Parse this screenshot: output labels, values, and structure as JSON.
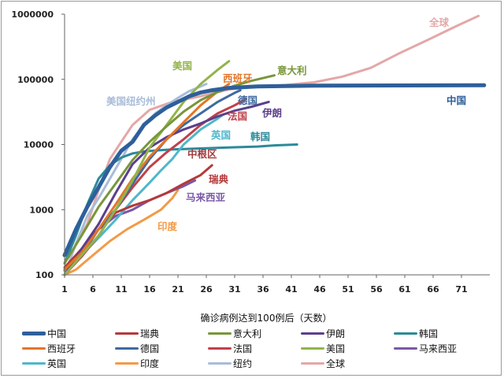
{
  "chart_data": {
    "type": "line",
    "y_scale": "log",
    "xlabel": "确诊病例达到100例后（天数）",
    "ylabel": "",
    "xlim": [
      1,
      76
    ],
    "ylim": [
      100,
      1000000
    ],
    "x_ticks": [
      "1",
      "6",
      "11",
      "16",
      "21",
      "26",
      "31",
      "36",
      "41",
      "46",
      "51",
      "56",
      "61",
      "66",
      "71"
    ],
    "y_ticks": [
      "100",
      "1000",
      "10000",
      "100000",
      "1000000"
    ],
    "series": [
      {
        "name": "中国",
        "label": "中国",
        "color": "#2e5f9a",
        "width": 5,
        "points": [
          [
            1,
            200
          ],
          [
            3,
            500
          ],
          [
            5,
            1100
          ],
          [
            7,
            2200
          ],
          [
            9,
            4500
          ],
          [
            11,
            8000
          ],
          [
            13,
            11000
          ],
          [
            15,
            20000
          ],
          [
            17,
            28000
          ],
          [
            19,
            37000
          ],
          [
            21,
            45000
          ],
          [
            23,
            55000
          ],
          [
            25,
            63000
          ],
          [
            27,
            68000
          ],
          [
            30,
            74000
          ],
          [
            35,
            78000
          ],
          [
            45,
            80000
          ],
          [
            60,
            80500
          ],
          [
            75,
            81000
          ]
        ]
      },
      {
        "name": "瑞典",
        "label": "瑞典",
        "color": "#b33a3a",
        "width": 3,
        "points": [
          [
            1,
            130
          ],
          [
            4,
            250
          ],
          [
            7,
            500
          ],
          [
            10,
            900
          ],
          [
            13,
            1150
          ],
          [
            16,
            1400
          ],
          [
            19,
            1800
          ],
          [
            22,
            2500
          ],
          [
            25,
            3400
          ],
          [
            27,
            4800
          ]
        ]
      },
      {
        "name": "意大利",
        "label": "意大利",
        "color": "#78963a",
        "width": 3,
        "points": [
          [
            1,
            150
          ],
          [
            4,
            400
          ],
          [
            7,
            1100
          ],
          [
            10,
            2500
          ],
          [
            13,
            5800
          ],
          [
            16,
            11000
          ],
          [
            19,
            19000
          ],
          [
            22,
            32000
          ],
          [
            25,
            48000
          ],
          [
            28,
            64000
          ],
          [
            31,
            80000
          ],
          [
            34,
            95000
          ],
          [
            38,
            115000
          ]
        ]
      },
      {
        "name": "伊朗",
        "label": "伊朗",
        "color": "#5b3f8c",
        "width": 3,
        "points": [
          [
            1,
            100
          ],
          [
            4,
            250
          ],
          [
            7,
            600
          ],
          [
            10,
            1800
          ],
          [
            13,
            5000
          ],
          [
            16,
            9000
          ],
          [
            19,
            13000
          ],
          [
            22,
            17000
          ],
          [
            25,
            21000
          ],
          [
            28,
            27000
          ],
          [
            31,
            33000
          ],
          [
            34,
            38000
          ],
          [
            37,
            45000
          ]
        ]
      },
      {
        "name": "韩国",
        "label": "韩国",
        "color": "#2c8a9a",
        "width": 3,
        "points": [
          [
            1,
            150
          ],
          [
            3,
            400
          ],
          [
            5,
            1200
          ],
          [
            7,
            3000
          ],
          [
            9,
            4800
          ],
          [
            11,
            6300
          ],
          [
            13,
            7300
          ],
          [
            15,
            7800
          ],
          [
            17,
            8100
          ],
          [
            20,
            8400
          ],
          [
            25,
            8700
          ],
          [
            30,
            9000
          ],
          [
            35,
            9300
          ],
          [
            38,
            9700
          ],
          [
            42,
            10000
          ]
        ]
      },
      {
        "name": "西班牙",
        "label": "西班牙",
        "color": "#e2762a",
        "width": 3,
        "points": [
          [
            1,
            120
          ],
          [
            4,
            220
          ],
          [
            7,
            500
          ],
          [
            10,
            1200
          ],
          [
            13,
            3000
          ],
          [
            16,
            6500
          ],
          [
            19,
            12000
          ],
          [
            22,
            22000
          ],
          [
            25,
            40000
          ],
          [
            28,
            65000
          ],
          [
            30,
            85000
          ]
        ]
      },
      {
        "name": "德国",
        "label": "德国",
        "color": "#3e6aa0",
        "width": 3,
        "points": [
          [
            1,
            120
          ],
          [
            4,
            200
          ],
          [
            7,
            500
          ],
          [
            10,
            1000
          ],
          [
            13,
            2500
          ],
          [
            16,
            6000
          ],
          [
            19,
            12000
          ],
          [
            22,
            20000
          ],
          [
            25,
            30000
          ],
          [
            28,
            45000
          ],
          [
            31,
            62000
          ],
          [
            32,
            68000
          ]
        ]
      },
      {
        "name": "法国",
        "label": "法国",
        "color": "#c0404a",
        "width": 3,
        "points": [
          [
            1,
            100
          ],
          [
            4,
            190
          ],
          [
            7,
            400
          ],
          [
            10,
            1000
          ],
          [
            13,
            2200
          ],
          [
            16,
            4500
          ],
          [
            19,
            7600
          ],
          [
            22,
            12000
          ],
          [
            25,
            20000
          ],
          [
            28,
            30000
          ],
          [
            31,
            40000
          ],
          [
            33,
            50000
          ]
        ]
      },
      {
        "name": "美国",
        "label": "美国",
        "color": "#92b44a",
        "width": 3,
        "points": [
          [
            1,
            100
          ],
          [
            4,
            200
          ],
          [
            7,
            400
          ],
          [
            10,
            1000
          ],
          [
            13,
            2800
          ],
          [
            16,
            9000
          ],
          [
            19,
            20000
          ],
          [
            22,
            45000
          ],
          [
            25,
            85000
          ],
          [
            28,
            140000
          ],
          [
            30,
            190000
          ]
        ]
      },
      {
        "name": "马来西亚",
        "label": "马来西亚",
        "color": "#7a58a8",
        "width": 3,
        "points": [
          [
            1,
            120
          ],
          [
            4,
            250
          ],
          [
            7,
            500
          ],
          [
            10,
            800
          ],
          [
            13,
            1000
          ],
          [
            16,
            1400
          ],
          [
            19,
            1800
          ],
          [
            22,
            2300
          ],
          [
            24,
            2800
          ]
        ]
      },
      {
        "name": "英国",
        "label": "英国",
        "color": "#4fb7cc",
        "width": 3,
        "points": [
          [
            1,
            115
          ],
          [
            4,
            200
          ],
          [
            7,
            370
          ],
          [
            10,
            700
          ],
          [
            13,
            1400
          ],
          [
            16,
            2600
          ],
          [
            18,
            4000
          ],
          [
            20,
            6000
          ],
          [
            22,
            10000
          ],
          [
            25,
            17000
          ],
          [
            28,
            25000
          ],
          [
            29,
            29000
          ]
        ]
      },
      {
        "name": "印度",
        "label": "印度",
        "color": "#f39a48",
        "width": 3,
        "points": [
          [
            1,
            100
          ],
          [
            3,
            120
          ],
          [
            6,
            200
          ],
          [
            9,
            330
          ],
          [
            12,
            500
          ],
          [
            15,
            700
          ],
          [
            18,
            1000
          ],
          [
            20,
            1500
          ],
          [
            21,
            2000
          ]
        ]
      },
      {
        "name": "纽约",
        "label": "美国纽约州",
        "color": "#a9bcd8",
        "width": 3,
        "points": [
          [
            1,
            100
          ],
          [
            3,
            300
          ],
          [
            5,
            800
          ],
          [
            7,
            1500
          ],
          [
            9,
            3000
          ],
          [
            11,
            6000
          ],
          [
            13,
            12000
          ],
          [
            15,
            20000
          ],
          [
            17,
            30000
          ],
          [
            19,
            40000
          ],
          [
            21,
            52000
          ],
          [
            23,
            66000
          ],
          [
            25,
            78000
          ],
          [
            26,
            85000
          ]
        ]
      },
      {
        "name": "全球",
        "label": "全球",
        "color": "#e4a7a7",
        "width": 3,
        "points": [
          [
            1,
            100
          ],
          [
            3,
            300
          ],
          [
            5,
            600
          ],
          [
            7,
            2000
          ],
          [
            9,
            6000
          ],
          [
            11,
            11000
          ],
          [
            13,
            20000
          ],
          [
            16,
            34000
          ],
          [
            20,
            45000
          ],
          [
            25,
            55000
          ],
          [
            30,
            70000
          ],
          [
            35,
            78000
          ],
          [
            40,
            82000
          ],
          [
            45,
            90000
          ],
          [
            50,
            110000
          ],
          [
            55,
            150000
          ],
          [
            60,
            250000
          ],
          [
            65,
            400000
          ],
          [
            70,
            650000
          ],
          [
            74,
            940000
          ]
        ]
      }
    ]
  },
  "legend": [
    {
      "name": "中国",
      "color": "#2e5f9a",
      "width": 5
    },
    {
      "name": "瑞典",
      "color": "#b33a3a",
      "width": 3
    },
    {
      "name": "意大利",
      "color": "#78963a",
      "width": 3
    },
    {
      "name": "伊朗",
      "color": "#5b3f8c",
      "width": 3
    },
    {
      "name": "韩国",
      "color": "#2c8a9a",
      "width": 3
    },
    {
      "name": "西班牙",
      "color": "#e2762a",
      "width": 3
    },
    {
      "name": "德国",
      "color": "#3e6aa0",
      "width": 3
    },
    {
      "name": "法国",
      "color": "#c0404a",
      "width": 3
    },
    {
      "name": "美国",
      "color": "#92b44a",
      "width": 3
    },
    {
      "name": "马来西亚",
      "color": "#7a58a8",
      "width": 3
    },
    {
      "name": "英国",
      "color": "#4fb7cc",
      "width": 3
    },
    {
      "name": "印度",
      "color": "#f39a48",
      "width": 3
    },
    {
      "name": "纽约",
      "color": "#a9bcd8",
      "width": 3
    },
    {
      "name": "全球",
      "color": "#e4a7a7",
      "width": 3
    }
  ],
  "annotations": [
    {
      "text": "全球",
      "color": "#e4a7a7"
    },
    {
      "text": "美国",
      "color": "#92b44a"
    },
    {
      "text": "意大利",
      "color": "#78963a"
    },
    {
      "text": "西班牙",
      "color": "#e2762a"
    },
    {
      "text": "美国纽约州",
      "color": "#a9bcd8"
    },
    {
      "text": "德国",
      "color": "#3e6aa0"
    },
    {
      "text": "伊朗",
      "color": "#5b3f8c"
    },
    {
      "text": "法国",
      "color": "#c0404a"
    },
    {
      "text": "中国",
      "color": "#2e5f9a"
    },
    {
      "text": "英国",
      "color": "#4fb7cc"
    },
    {
      "text": "韩国",
      "color": "#2c8a9a"
    },
    {
      "text": "中根区",
      "color": "#a03a3a"
    },
    {
      "text": "瑞典",
      "color": "#b33a3a"
    },
    {
      "text": "马来西亚",
      "color": "#7a58a8"
    },
    {
      "text": "印度",
      "color": "#f39a48"
    }
  ]
}
